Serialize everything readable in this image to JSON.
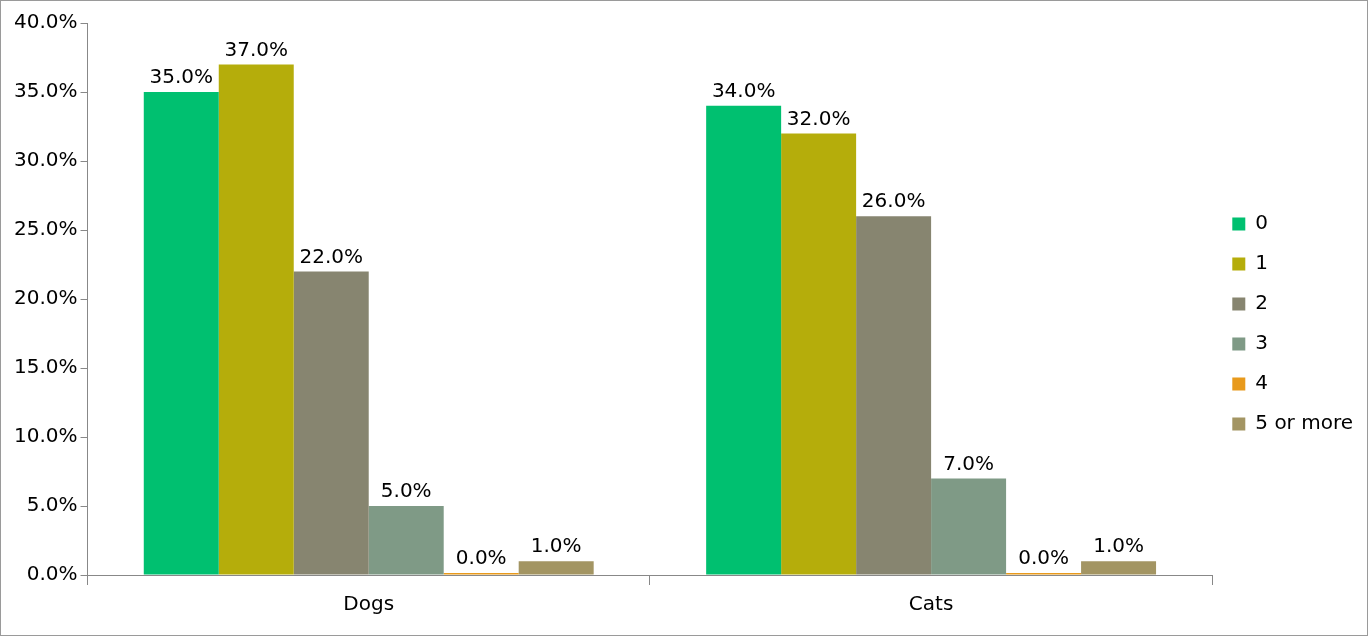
{
  "chart_data": {
    "type": "bar",
    "categories": [
      "Dogs",
      "Cats"
    ],
    "series": [
      {
        "name": "0",
        "color": "#00c070",
        "values": [
          35,
          34
        ],
        "value_labels": [
          "35.0%",
          "34.0%"
        ]
      },
      {
        "name": "1",
        "color": "#b5ad0b",
        "values": [
          37,
          32
        ],
        "value_labels": [
          "37.0%",
          "32.0%"
        ]
      },
      {
        "name": "2",
        "color": "#878570",
        "values": [
          22,
          26
        ],
        "value_labels": [
          "22.0%",
          "26.0%"
        ]
      },
      {
        "name": "3",
        "color": "#7f9a86",
        "values": [
          5,
          7
        ],
        "value_labels": [
          "5.0%",
          "7.0%"
        ]
      },
      {
        "name": "4",
        "color": "#e89a1c",
        "values": [
          0,
          0
        ],
        "value_labels": [
          "0.0%",
          "0.0%"
        ]
      },
      {
        "name": "5 or more",
        "color": "#a39563",
        "values": [
          1,
          1
        ],
        "value_labels": [
          "1.0%",
          "1.0%"
        ]
      }
    ],
    "ylim": [
      0,
      40
    ],
    "yticks": [
      {
        "value": 0,
        "label": "0.0%"
      },
      {
        "value": 5,
        "label": "5.0%"
      },
      {
        "value": 10,
        "label": "10.0%"
      },
      {
        "value": 15,
        "label": "15.0%"
      },
      {
        "value": 20,
        "label": "20.0%"
      },
      {
        "value": 25,
        "label": "25.0%"
      },
      {
        "value": 30,
        "label": "30.0%"
      },
      {
        "value": 35,
        "label": "35.0%"
      },
      {
        "value": 40,
        "label": "40.0%"
      }
    ],
    "grid": false,
    "legend": "right"
  }
}
